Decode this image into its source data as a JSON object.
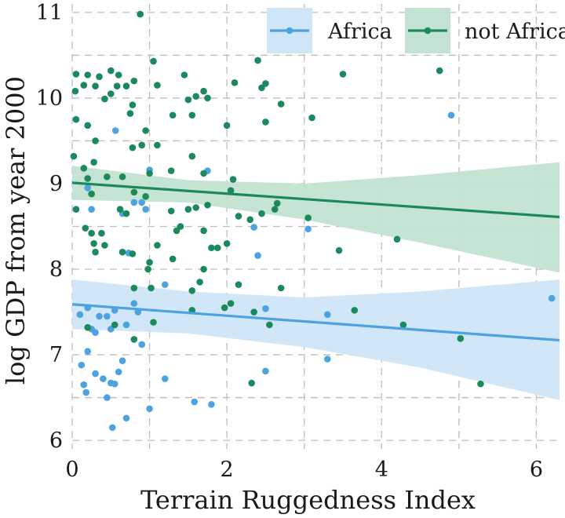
{
  "chart_data": {
    "type": "scatter",
    "xlabel": "Terrain Ruggedness Index",
    "ylabel": "log GDP from year 2000",
    "xlim": [
      0,
      6.3
    ],
    "ylim": [
      5.9,
      11.1
    ],
    "xticks": [
      0,
      2,
      4,
      6
    ],
    "yticks": [
      6,
      7,
      8,
      9,
      10,
      11
    ],
    "grid": true,
    "legend_position": "top-right",
    "series": [
      {
        "name": "Africa",
        "color": "#4ca3e0",
        "band_color": "#cfe6f7",
        "fit_line": {
          "x": [
            0,
            6.3
          ],
          "y": [
            7.59,
            7.17
          ]
        },
        "band_upper": [
          [
            0,
            7.88
          ],
          [
            1.5,
            7.74
          ],
          [
            3.0,
            7.67
          ],
          [
            4.5,
            7.74
          ],
          [
            6.3,
            7.88
          ]
        ],
        "band_lower": [
          [
            0,
            7.3
          ],
          [
            1.5,
            7.25
          ],
          [
            3.0,
            7.09
          ],
          [
            4.5,
            6.85
          ],
          [
            6.3,
            6.47
          ]
        ],
        "points": [
          [
            0.56,
            9.62
          ],
          [
            1.0,
            9.16
          ],
          [
            0.9,
            8.78
          ],
          [
            0.2,
            8.95
          ],
          [
            0.25,
            8.7
          ],
          [
            0.65,
            8.65
          ],
          [
            0.8,
            8.78
          ],
          [
            0.95,
            8.7
          ],
          [
            1.75,
            9.15
          ],
          [
            4.9,
            9.8
          ],
          [
            3.05,
            8.47
          ],
          [
            2.35,
            8.49
          ],
          [
            2.4,
            8.16
          ],
          [
            0.73,
            8.19
          ],
          [
            6.2,
            7.66
          ],
          [
            1.2,
            7.82
          ],
          [
            0.8,
            7.6
          ],
          [
            0.85,
            7.5
          ],
          [
            0.1,
            7.47
          ],
          [
            0.2,
            7.55
          ],
          [
            0.45,
            7.45
          ],
          [
            0.35,
            7.45
          ],
          [
            0.55,
            7.52
          ],
          [
            0.7,
            7.35
          ],
          [
            0.25,
            7.3
          ],
          [
            0.3,
            7.26
          ],
          [
            0.5,
            7.3
          ],
          [
            2.5,
            7.54
          ],
          [
            3.3,
            7.47
          ],
          [
            0.9,
            7.12
          ],
          [
            0.2,
            7.04
          ],
          [
            0.12,
            6.88
          ],
          [
            0.6,
            6.8
          ],
          [
            0.3,
            6.78
          ],
          [
            0.4,
            6.72
          ],
          [
            0.65,
            6.93
          ],
          [
            0.15,
            6.65
          ],
          [
            0.5,
            6.67
          ],
          [
            0.55,
            6.66
          ],
          [
            0.18,
            6.56
          ],
          [
            0.45,
            6.5
          ],
          [
            1.2,
            6.72
          ],
          [
            2.5,
            6.81
          ],
          [
            3.3,
            6.95
          ],
          [
            1.0,
            6.37
          ],
          [
            1.58,
            6.45
          ],
          [
            1.8,
            6.42
          ],
          [
            0.7,
            6.26
          ],
          [
            0.52,
            6.15
          ]
        ]
      },
      {
        "name": "not Africa",
        "color": "#1b8a5a",
        "band_color": "#c2e3d2",
        "fit_line": {
          "x": [
            0,
            6.3
          ],
          "y": [
            9.01,
            8.61
          ]
        },
        "band_upper": [
          [
            0,
            9.21
          ],
          [
            1.5,
            9.04
          ],
          [
            3.0,
            9.0
          ],
          [
            4.5,
            9.1
          ],
          [
            6.3,
            9.25
          ]
        ],
        "band_lower": [
          [
            0,
            8.81
          ],
          [
            1.5,
            8.78
          ],
          [
            3.0,
            8.58
          ],
          [
            4.5,
            8.31
          ],
          [
            6.3,
            7.96
          ]
        ],
        "points": [
          [
            0.88,
            10.98
          ],
          [
            0.05,
            10.28
          ],
          [
            0.2,
            10.27
          ],
          [
            0.35,
            10.25
          ],
          [
            0.5,
            10.32
          ],
          [
            0.6,
            10.27
          ],
          [
            0.15,
            10.15
          ],
          [
            0.3,
            10.14
          ],
          [
            0.8,
            10.2
          ],
          [
            1.1,
            10.15
          ],
          [
            1.45,
            10.27
          ],
          [
            1.05,
            10.43
          ],
          [
            2.4,
            10.44
          ],
          [
            2.1,
            10.18
          ],
          [
            1.7,
            10.08
          ],
          [
            0.04,
            10.08
          ],
          [
            0.58,
            10.14
          ],
          [
            0.7,
            10.14
          ],
          [
            1.6,
            10.02
          ],
          [
            1.75,
            10.0
          ],
          [
            2.45,
            10.12
          ],
          [
            2.5,
            10.17
          ],
          [
            4.75,
            10.32
          ],
          [
            3.5,
            10.28
          ],
          [
            0.5,
            10.05
          ],
          [
            0.42,
            9.99
          ],
          [
            1.5,
            9.98
          ],
          [
            0.78,
            9.92
          ],
          [
            0.75,
            9.82
          ],
          [
            1.3,
            9.8
          ],
          [
            1.55,
            9.8
          ],
          [
            0.05,
            9.75
          ],
          [
            0.2,
            9.68
          ],
          [
            0.95,
            9.62
          ],
          [
            0.3,
            9.5
          ],
          [
            2.0,
            9.68
          ],
          [
            2.5,
            9.72
          ],
          [
            3.1,
            9.77
          ],
          [
            2.7,
            9.93
          ],
          [
            0.15,
            9.18
          ],
          [
            0.28,
            9.25
          ],
          [
            0.78,
            9.42
          ],
          [
            0.9,
            9.45
          ],
          [
            1.1,
            9.45
          ],
          [
            1.55,
            9.32
          ],
          [
            0.02,
            9.32
          ],
          [
            0.2,
            9.06
          ],
          [
            0.25,
            8.88
          ],
          [
            0.45,
            9.08
          ],
          [
            0.65,
            9.08
          ],
          [
            1.0,
            9.12
          ],
          [
            1.28,
            9.15
          ],
          [
            1.7,
            9.12
          ],
          [
            2.08,
            9.05
          ],
          [
            0.8,
            8.9
          ],
          [
            0.95,
            8.85
          ],
          [
            0.05,
            8.7
          ],
          [
            0.62,
            8.7
          ],
          [
            0.7,
            8.65
          ],
          [
            1.28,
            8.68
          ],
          [
            1.5,
            8.7
          ],
          [
            1.6,
            8.72
          ],
          [
            1.75,
            8.75
          ],
          [
            2.05,
            8.92
          ],
          [
            2.15,
            8.62
          ],
          [
            2.3,
            8.58
          ],
          [
            2.45,
            8.65
          ],
          [
            2.62,
            8.7
          ],
          [
            2.65,
            8.77
          ],
          [
            3.05,
            8.6
          ],
          [
            0.17,
            8.48
          ],
          [
            0.25,
            8.42
          ],
          [
            0.38,
            8.42
          ],
          [
            0.28,
            8.3
          ],
          [
            0.3,
            8.2
          ],
          [
            0.42,
            8.28
          ],
          [
            0.65,
            8.2
          ],
          [
            1.1,
            8.28
          ],
          [
            1.35,
            8.45
          ],
          [
            1.4,
            8.5
          ],
          [
            1.7,
            8.45
          ],
          [
            1.8,
            8.25
          ],
          [
            1.88,
            8.25
          ],
          [
            2.0,
            8.3
          ],
          [
            4.2,
            8.35
          ],
          [
            3.45,
            8.22
          ],
          [
            0.78,
            8.18
          ],
          [
            1.0,
            8.08
          ],
          [
            0.98,
            8.0
          ],
          [
            1.3,
            8.12
          ],
          [
            1.7,
            8.0
          ],
          [
            1.65,
            7.85
          ],
          [
            2.15,
            7.82
          ],
          [
            2.7,
            7.78
          ],
          [
            0.8,
            7.78
          ],
          [
            1.02,
            7.78
          ],
          [
            1.55,
            7.75
          ],
          [
            1.97,
            7.55
          ],
          [
            2.05,
            7.6
          ],
          [
            2.35,
            7.5
          ],
          [
            1.55,
            7.52
          ],
          [
            3.65,
            7.52
          ],
          [
            4.28,
            7.35
          ],
          [
            1.05,
            7.38
          ],
          [
            2.55,
            7.35
          ],
          [
            0.55,
            7.35
          ],
          [
            0.2,
            7.32
          ],
          [
            0.8,
            7.18
          ],
          [
            5.02,
            7.19
          ],
          [
            2.32,
            6.67
          ],
          [
            5.28,
            6.66
          ]
        ]
      }
    ]
  }
}
